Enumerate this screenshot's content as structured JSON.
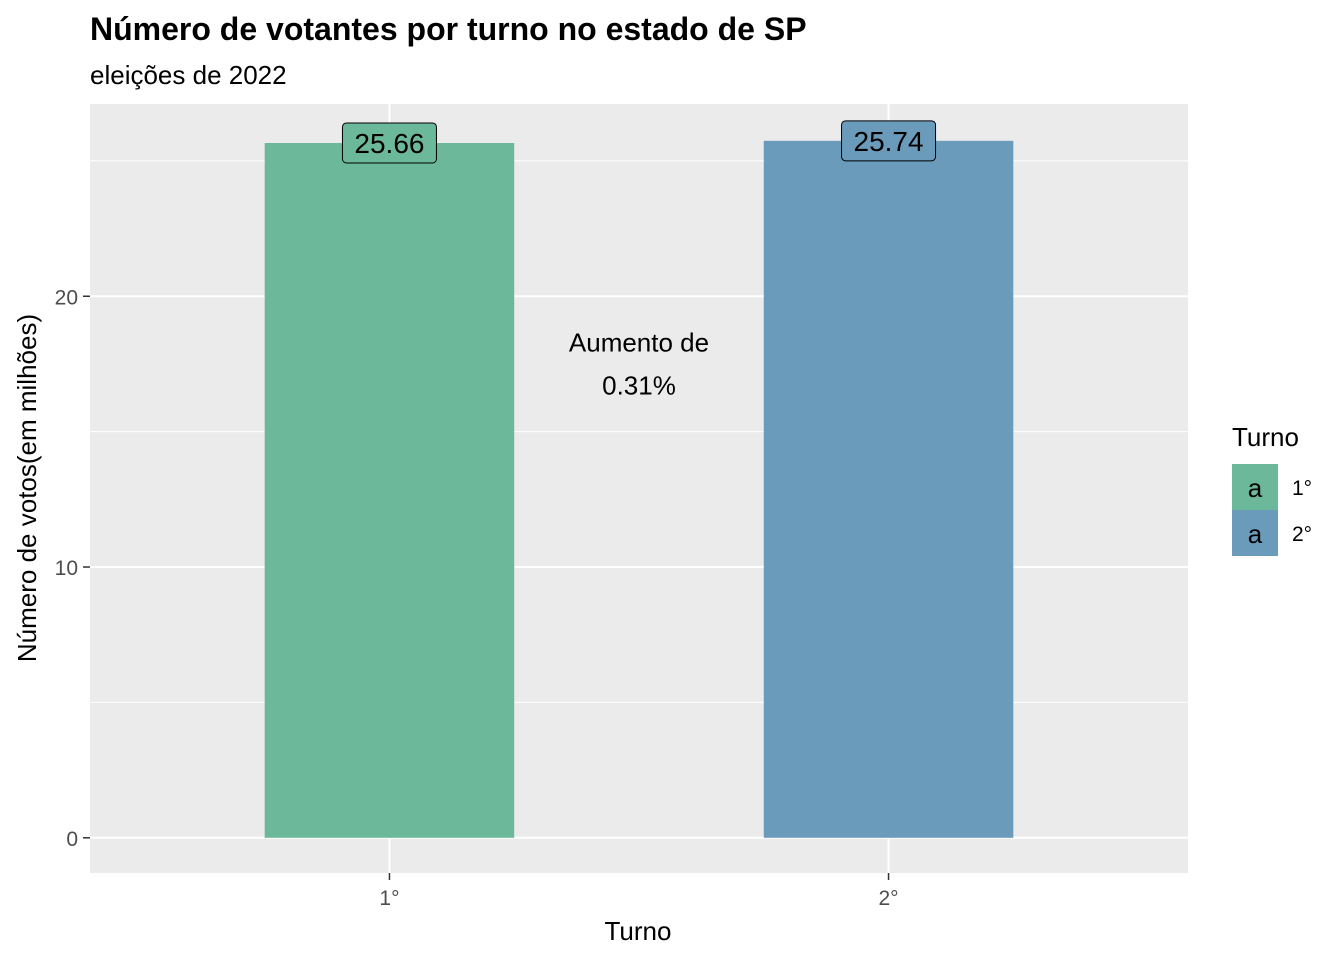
{
  "chart_data": {
    "type": "bar",
    "title": "Número de votantes por turno no estado de SP",
    "subtitle": "eleições de 2022",
    "xlabel": "Turno",
    "ylabel": "Número de votos(em milhões)",
    "categories": [
      "1°",
      "2°"
    ],
    "values": [
      25.66,
      25.74
    ],
    "value_labels": [
      "25.66",
      "25.74"
    ],
    "colors": [
      "#6cb89a",
      "#6b9bba"
    ],
    "ylim": [
      -1.3,
      27.1
    ],
    "y_ticks": [
      0,
      10,
      20
    ],
    "y_tick_labels": [
      "0",
      "10",
      "20"
    ],
    "grid": true,
    "annotation": {
      "lines": [
        "Aumento de",
        "0.31%"
      ],
      "x_position": 1.5,
      "y_position": 18.3
    },
    "legend": {
      "title": "Turno",
      "placement": "right",
      "entries": [
        "1°",
        "2°"
      ],
      "key_glyph": "a"
    }
  }
}
